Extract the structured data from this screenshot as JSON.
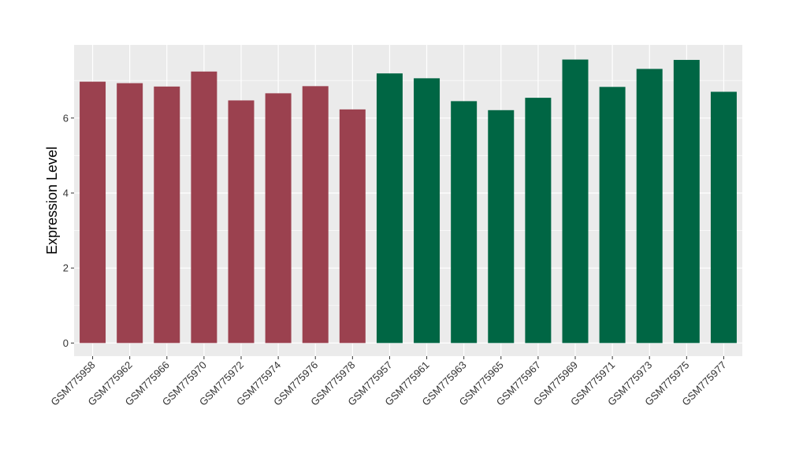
{
  "chart_data": {
    "type": "bar",
    "ylabel": "Expression Level",
    "xlabel": "",
    "ylim": [
      -0.35,
      7.95
    ],
    "yticks": [
      0,
      2,
      4,
      6
    ],
    "grid": true,
    "categories": [
      "GSM775958",
      "GSM775962",
      "GSM775966",
      "GSM775970",
      "GSM775972",
      "GSM775974",
      "GSM775976",
      "GSM775978",
      "GSM775957",
      "GSM775961",
      "GSM775963",
      "GSM775965",
      "GSM775967",
      "GSM775969",
      "GSM775971",
      "GSM775973",
      "GSM775975",
      "GSM775977"
    ],
    "values": [
      6.97,
      6.93,
      6.84,
      7.24,
      6.47,
      6.66,
      6.85,
      6.23,
      7.19,
      7.06,
      6.45,
      6.21,
      6.54,
      7.56,
      6.83,
      7.31,
      7.55,
      6.7
    ],
    "groups": [
      0,
      0,
      0,
      0,
      0,
      0,
      0,
      0,
      1,
      1,
      1,
      1,
      1,
      1,
      1,
      1,
      1,
      1
    ],
    "colors": {
      "group_a": "#9b414f",
      "group_b": "#006644",
      "panel": "#ebebeb",
      "grid": "#ffffff"
    }
  }
}
